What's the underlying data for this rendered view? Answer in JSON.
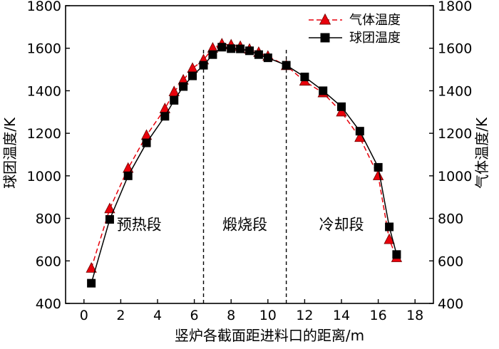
{
  "chart_data": {
    "type": "line",
    "xlabel": "竖炉各截面距进料口的距离/m",
    "ylabel_left": "球团温度/K",
    "ylabel_right": "气体温度/K",
    "xlim": [
      -1,
      19
    ],
    "ylim": [
      400,
      1800
    ],
    "xticks": [
      0,
      2,
      4,
      6,
      8,
      10,
      12,
      14,
      16,
      18
    ],
    "yticks": [
      400,
      600,
      800,
      1000,
      1200,
      1400,
      1600,
      1800
    ],
    "grid": false,
    "legend_position": "top-right",
    "section_dividers_x": [
      6.5,
      11
    ],
    "regions": [
      {
        "label": "预热段",
        "x": 3.0,
        "y": 770
      },
      {
        "label": "煅烧段",
        "x": 8.75,
        "y": 770
      },
      {
        "label": "冷却段",
        "x": 14.0,
        "y": 770
      }
    ],
    "series": [
      {
        "name": "气体温度",
        "color": "#e8000b",
        "marker_fill": "#e8000b",
        "line_style": "dashed",
        "marker": "triangle",
        "x": [
          0.4,
          1.4,
          2.4,
          3.4,
          4.4,
          4.9,
          5.4,
          5.9,
          6.5,
          7.0,
          7.5,
          8.0,
          8.5,
          9.0,
          9.5,
          10.0,
          11.0,
          12.0,
          13.0,
          14.0,
          15.0,
          16.0,
          16.6,
          17.0
        ],
        "values": [
          565,
          845,
          1035,
          1190,
          1315,
          1395,
          1450,
          1505,
          1545,
          1600,
          1620,
          1615,
          1608,
          1595,
          1580,
          1562,
          1518,
          1445,
          1390,
          1300,
          1180,
          1000,
          700,
          615
        ]
      },
      {
        "name": "球团温度",
        "color": "#000000",
        "marker_fill": "#000000",
        "line_style": "solid",
        "marker": "square",
        "x": [
          0.4,
          1.4,
          2.4,
          3.4,
          4.4,
          4.9,
          5.4,
          5.9,
          6.5,
          7.0,
          7.5,
          8.0,
          8.5,
          9.0,
          9.5,
          10.0,
          11.0,
          12.0,
          13.0,
          14.0,
          15.0,
          16.0,
          16.6,
          17.0
        ],
        "values": [
          495,
          795,
          1000,
          1155,
          1280,
          1355,
          1420,
          1470,
          1520,
          1570,
          1605,
          1598,
          1597,
          1588,
          1570,
          1555,
          1520,
          1465,
          1400,
          1325,
          1210,
          1040,
          760,
          630
        ]
      }
    ]
  }
}
